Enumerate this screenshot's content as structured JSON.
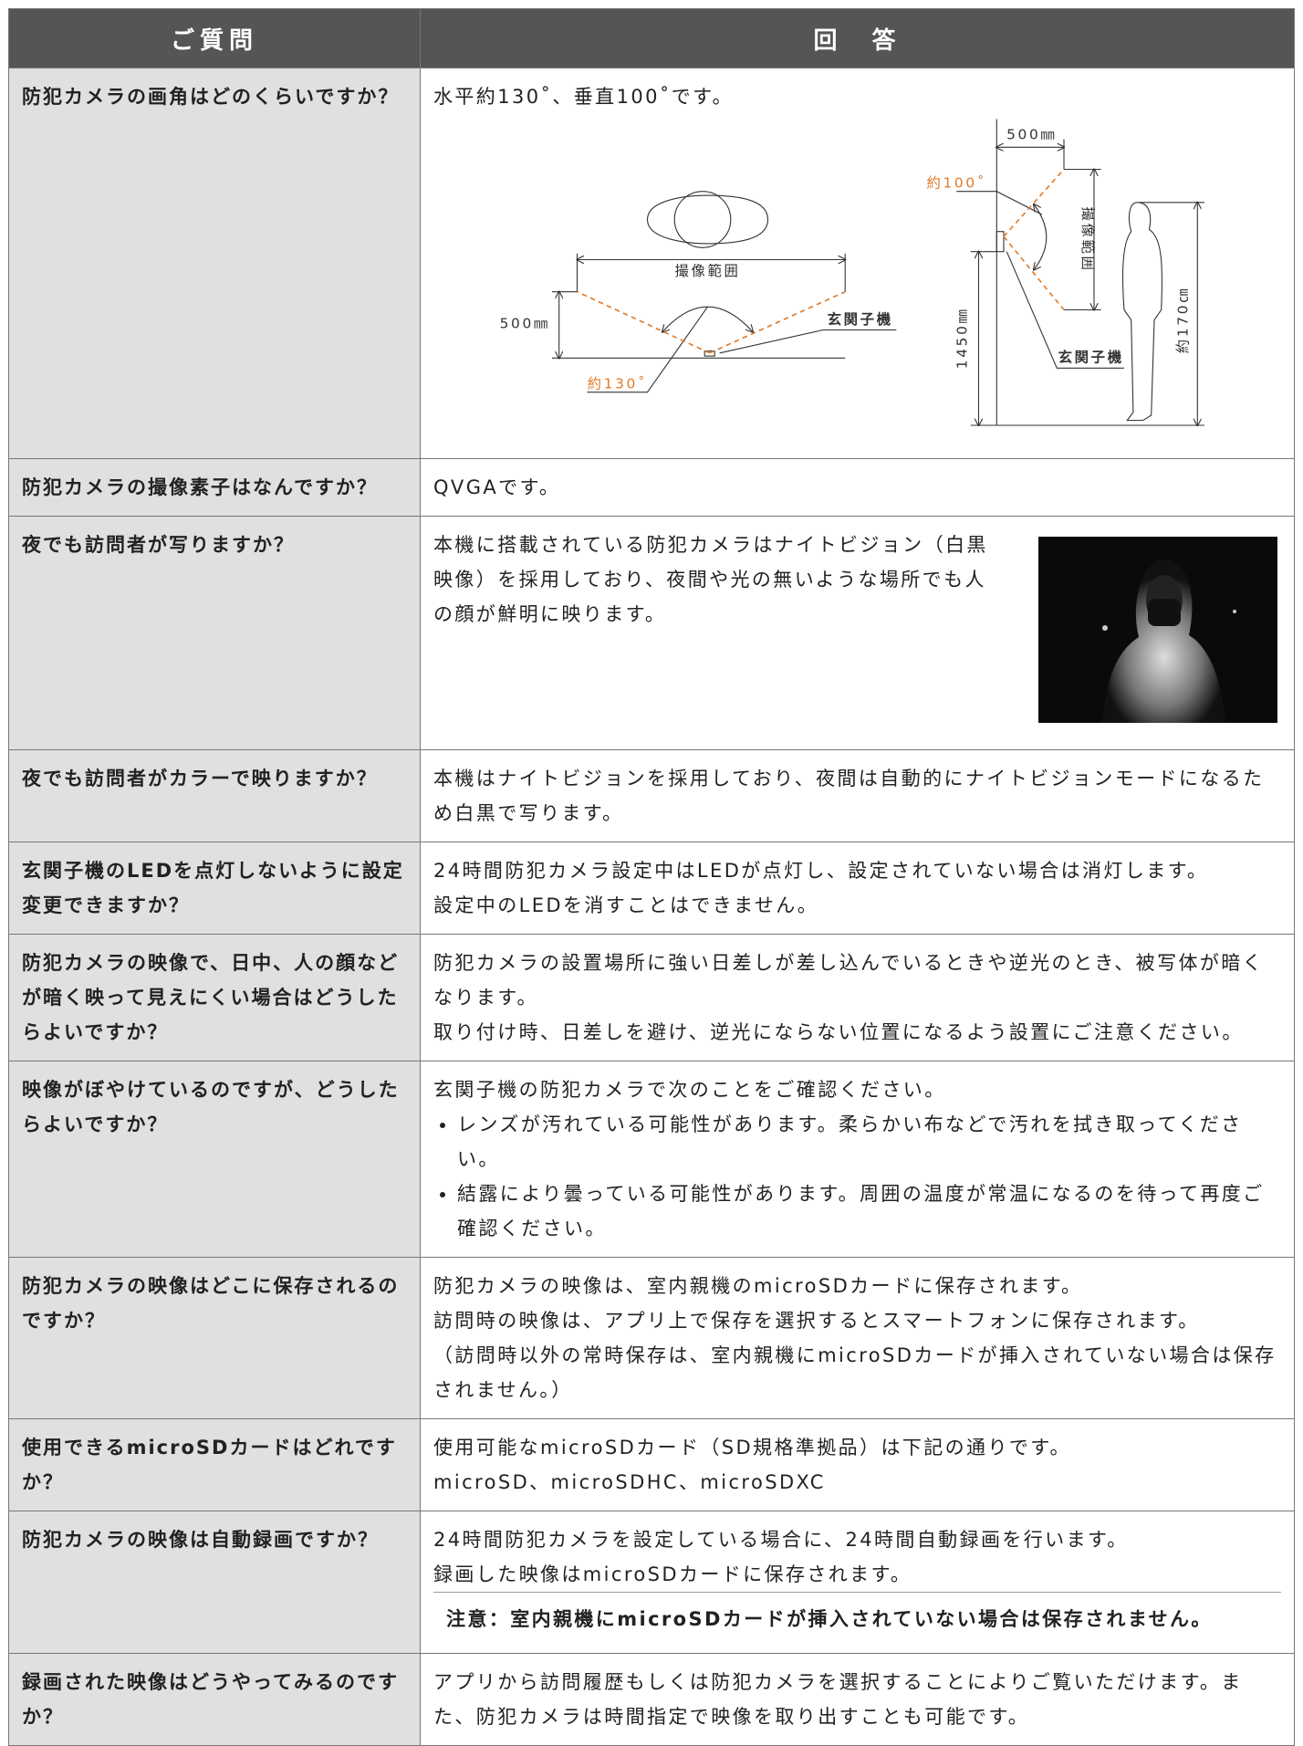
{
  "header": {
    "question": "ご質問",
    "answer": "回　答"
  },
  "rows": [
    {
      "question": "防犯カメラの画角はどのくらいですか？",
      "answer": {
        "lines": [
          "水平約130˚、垂直100˚です。"
        ]
      },
      "diagram": {
        "left": {
          "width": "500㎜",
          "range": "撮像範囲",
          "unit": "玄関子機",
          "angle": "約130˚"
        },
        "right": {
          "width": "500㎜",
          "range": "撮像範囲",
          "unit": "玄関子機",
          "angle": "約100˚",
          "height": "1450㎜",
          "person": "約170㎝"
        }
      }
    },
    {
      "question": "防犯カメラの撮像素子はなんですか？",
      "answer": {
        "lines": [
          "QVGAです。"
        ]
      }
    },
    {
      "question": "夜でも訪問者が写りますか？",
      "answer": {
        "lines": [
          "本機に搭載されている防犯カメラはナイトビジョン（白黒映像）を採用しており、夜間や光の無いような場所でも人の顔が鮮明に映ります。"
        ]
      }
    },
    {
      "question": "夜でも訪問者がカラーで映りますか？",
      "answer": {
        "lines": [
          "本機はナイトビジョンを採用しており、夜間は自動的にナイトビジョンモードになるため白黒で写ります。"
        ]
      }
    },
    {
      "question": "玄関子機のLEDを点灯しないように設定変更できますか？",
      "answer": {
        "lines": [
          "24時間防犯カメラ設定中はLEDが点灯し、設定されていない場合は消灯します。",
          "設定中のLEDを消すことはできません。"
        ]
      }
    },
    {
      "question": "防犯カメラの映像で、日中、人の顔などが暗く映って見えにくい場合はどうしたらよいですか？",
      "answer": {
        "lines": [
          "防犯カメラの設置場所に強い日差しが差し込んでいるときや逆光のとき、被写体が暗くなります。",
          "取り付け時、日差しを避け、逆光にならない位置になるよう設置にご注意ください。"
        ]
      }
    },
    {
      "question": "映像がぼやけているのですが、どうしたらよいですか？",
      "answer": {
        "lines": [
          "玄関子機の防犯カメラで次のことをご確認ください。"
        ],
        "bullets": [
          "レンズが汚れている可能性があります。柔らかい布などで汚れを拭き取ってください。",
          "結露により曇っている可能性があります。周囲の温度が常温になるのを待って再度ご確認ください。"
        ]
      }
    },
    {
      "question": "防犯カメラの映像はどこに保存されるのですか？",
      "answer": {
        "lines": [
          "防犯カメラの映像は、室内親機のmicroSDカードに保存されます。",
          "訪問時の映像は、アプリ上で保存を選択するとスマートフォンに保存されます。",
          "（訪問時以外の常時保存は、室内親機にmicroSDカードが挿入されていない場合は保存されません。）"
        ]
      }
    },
    {
      "question": "使用できるmicroSDカードはどれですか？",
      "answer": {
        "lines": [
          "使用可能なmicroSDカード（SD規格準拠品）は下記の通りです。",
          "microSD、microSDHC、microSDXC"
        ]
      }
    },
    {
      "question": "防犯カメラの映像は自動録画ですか？",
      "answer": {
        "lines": [
          "24時間防犯カメラを設定している場合に、24時間自動録画を行います。",
          "録画した映像はmicroSDカードに保存されます。"
        ],
        "note": "注意：室内親機にmicroSDカードが挿入されていない場合は保存されません。"
      }
    },
    {
      "question": "録画された映像はどうやってみるのですか？",
      "answer": {
        "lines": [
          "アプリから訪問履歴もしくは防犯カメラを選択することによりご覧いただけます。また、防犯カメラは時間指定で映像を取り出すことも可能です。"
        ]
      }
    }
  ]
}
